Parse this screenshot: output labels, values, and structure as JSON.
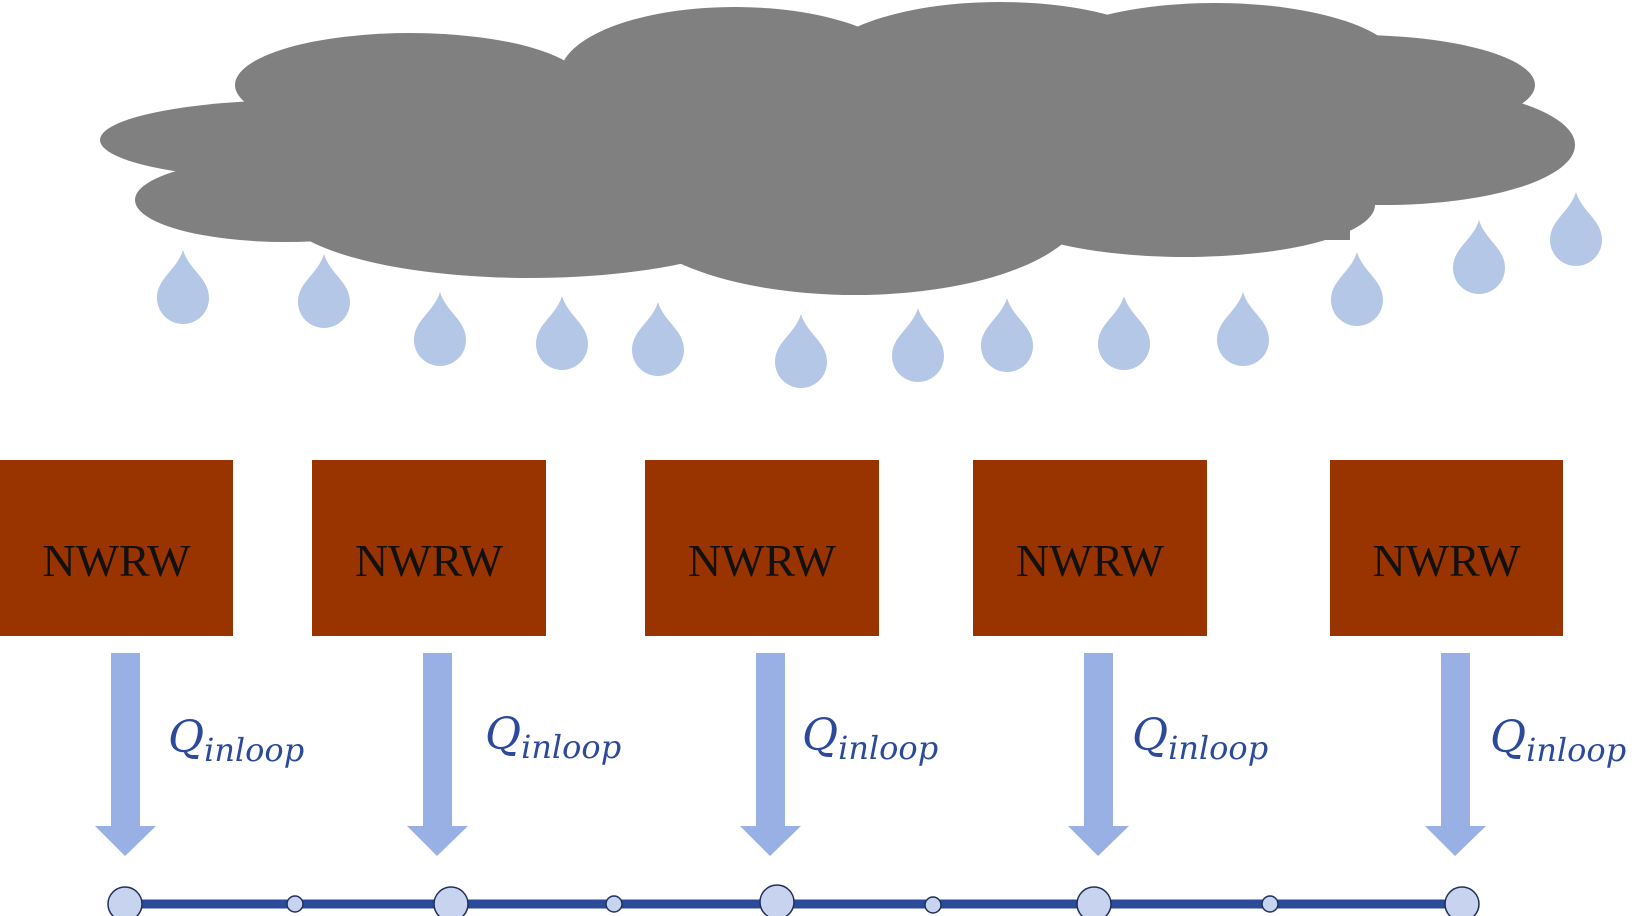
{
  "colors": {
    "cloud": "#808080",
    "raindrop": "#b4c7e7",
    "box": "#993300",
    "box_text": "#111111",
    "arrow": "#99b0e5",
    "flow_text": "#2b4a9a",
    "pipe": "#2b4a9a",
    "node_fill": "#c7d3ef",
    "node_stroke": "#1f2f5a"
  },
  "icons": {
    "cloud": "cloud-icon",
    "raindrop": "raindrop-icon"
  },
  "boxes": [
    {
      "label": "NWRW",
      "flow": {
        "symbol": "Q",
        "subscript": "inloop"
      }
    },
    {
      "label": "NWRW",
      "flow": {
        "symbol": "Q",
        "subscript": "inloop"
      }
    },
    {
      "label": "NWRW",
      "flow": {
        "symbol": "Q",
        "subscript": "inloop"
      }
    },
    {
      "label": "NWRW",
      "flow": {
        "symbol": "Q",
        "subscript": "inloop"
      }
    },
    {
      "label": "NWRW",
      "flow": {
        "symbol": "Q",
        "subscript": "inloop"
      }
    }
  ]
}
